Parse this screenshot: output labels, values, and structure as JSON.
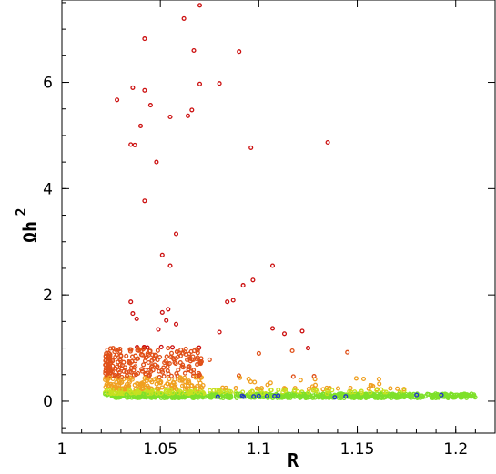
{
  "chart_data": {
    "type": "scatter",
    "title": "",
    "xlabel": "R",
    "ylabel_main": "Ωh",
    "ylabel_exponent": "2",
    "xlim": [
      1.0,
      1.22
    ],
    "ylim": [
      -0.6,
      7.55
    ],
    "xticks": [
      1,
      1.05,
      1.1,
      1.15,
      1.2
    ],
    "xtick_labels": [
      "1",
      "1.05",
      "1.1",
      "1.15",
      "1.2"
    ],
    "yticks": [
      0,
      2,
      4,
      6
    ],
    "ytick_labels": [
      "0",
      "2",
      "4",
      "6"
    ],
    "grid": false,
    "legend": "none",
    "marker": "open-circle",
    "colormap_by_y": [
      "#2233cc",
      "#7ee02a",
      "#c8e020",
      "#f0a020",
      "#e05018",
      "#cc1010"
    ],
    "series": [
      {
        "x": [
          1.07,
          1.062,
          1.042,
          1.067,
          1.09,
          1.028,
          1.07,
          1.08,
          1.036,
          1.042,
          1.045,
          1.066,
          1.055,
          1.064,
          1.04,
          1.035,
          1.037,
          1.096,
          1.135,
          1.048,
          1.042,
          1.058,
          1.051,
          1.055,
          1.107,
          1.097,
          1.092,
          1.087,
          1.084,
          1.035,
          1.036,
          1.054,
          1.051,
          1.038,
          1.053,
          1.107,
          1.122,
          1.113,
          1.08,
          1.058,
          1.049,
          1.145,
          1.03,
          1.024,
          1.117,
          1.125,
          1.065,
          1.1,
          1.075
        ],
        "y": [
          7.45,
          7.2,
          6.82,
          6.6,
          6.58,
          5.67,
          5.97,
          5.98,
          5.9,
          5.85,
          5.57,
          5.48,
          5.35,
          5.37,
          5.18,
          4.83,
          4.82,
          4.77,
          4.87,
          4.5,
          3.77,
          3.15,
          2.75,
          2.55,
          2.55,
          2.28,
          2.18,
          1.9,
          1.87,
          1.87,
          1.65,
          1.73,
          1.67,
          1.55,
          1.52,
          1.37,
          1.32,
          1.27,
          1.3,
          1.45,
          1.35,
          0.92,
          0.85,
          0.9,
          0.95,
          1.0,
          0.8,
          0.9,
          0.78
        ]
      }
    ]
  }
}
